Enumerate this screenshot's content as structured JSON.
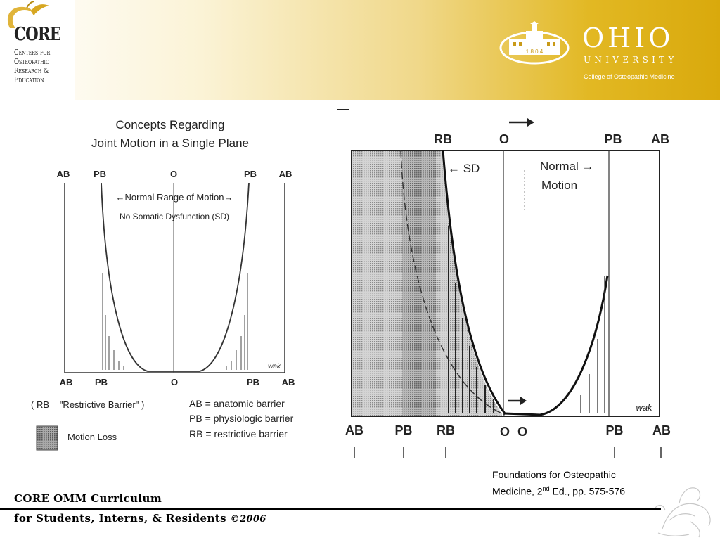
{
  "header": {
    "core": {
      "logo_word": "CORE",
      "sub_lines": [
        "Centers for",
        "Osteopathic",
        "Research &",
        "Education"
      ]
    },
    "ohio": {
      "name": "OHIO",
      "university": "UNIVERSITY",
      "college": "College of Osteopathic Medicine",
      "seal_year": "1 8 0 4"
    }
  },
  "left_diagram": {
    "title_line1": "Concepts Regarding",
    "title_line2": "Joint Motion in a Single Plane",
    "top_labels": [
      "AB",
      "PB",
      "O",
      "PB",
      "AB"
    ],
    "range_label": "←Normal Range of Motion→",
    "no_sd_label": "No Somatic Dysfunction (SD)",
    "bottom_labels": [
      "AB",
      "PB",
      "O",
      "PB",
      "AB"
    ],
    "initials": "wak",
    "rb_note": "( RB = \"Restrictive Barrier\" )",
    "legend_defs": [
      "AB = anatomic barrier",
      "PB = physiologic barrier",
      "RB = restrictive barrier"
    ],
    "motion_loss_label": "Motion Loss"
  },
  "right_diagram": {
    "top_labels": [
      "RB",
      "O",
      "PB",
      "AB"
    ],
    "sd_label": "← SD",
    "normal_motion_line1": "Normal →",
    "normal_motion_line2": "Motion",
    "bottom_labels": [
      "AB",
      "PB",
      "RB",
      "O",
      "O",
      "PB",
      "AB"
    ],
    "initials": "wak"
  },
  "citation": {
    "line1": "Foundations for Osteopathic",
    "line2_pre": "Medicine, 2",
    "line2_sup": "nd",
    "line2_post": " Ed., pp. 575-576"
  },
  "footer": {
    "line1": "CORE OMM Curriculum",
    "line2": "for Students, Interns, & Residents",
    "copyright": "©2006"
  }
}
